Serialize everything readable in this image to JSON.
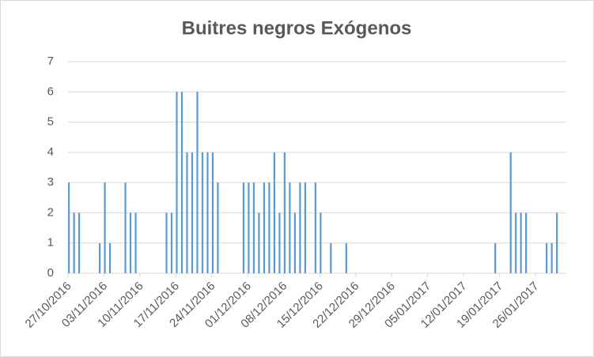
{
  "chart_data": {
    "type": "bar",
    "title": "Buitres negros Exógenos",
    "x": [
      "27/10/2016",
      "28/10/2016",
      "29/10/2016",
      "02/11/2016",
      "03/11/2016",
      "04/11/2016",
      "07/11/2016",
      "08/11/2016",
      "09/11/2016",
      "15/11/2016",
      "16/11/2016",
      "17/11/2016",
      "18/11/2016",
      "19/11/2016",
      "20/11/2016",
      "21/11/2016",
      "22/11/2016",
      "23/11/2016",
      "24/11/2016",
      "25/11/2016",
      "30/11/2016",
      "01/12/2016",
      "02/12/2016",
      "03/12/2016",
      "04/12/2016",
      "05/12/2016",
      "06/12/2016",
      "07/12/2016",
      "08/12/2016",
      "09/12/2016",
      "10/12/2016",
      "11/12/2016",
      "12/12/2016",
      "14/12/2016",
      "15/12/2016",
      "17/12/2016",
      "20/12/2016",
      "18/01/2017",
      "21/01/2017",
      "22/01/2017",
      "23/01/2017",
      "24/01/2017",
      "28/01/2017",
      "29/01/2017",
      "30/01/2017"
    ],
    "values": [
      3,
      2,
      2,
      1,
      3,
      1,
      3,
      2,
      2,
      2,
      2,
      6,
      6,
      4,
      4,
      6,
      4,
      4,
      4,
      3,
      3,
      3,
      3,
      2,
      3,
      3,
      4,
      2,
      4,
      3,
      2,
      3,
      3,
      3,
      2,
      1,
      1,
      1,
      4,
      2,
      2,
      2,
      1,
      1,
      2
    ],
    "color": "#5b9bd5",
    "xlim": [
      "27/10/2016",
      "01/02/2017"
    ],
    "xticks": [
      "27/10/2016",
      "03/11/2016",
      "10/11/2016",
      "17/11/2016",
      "24/11/2016",
      "01/12/2016",
      "08/12/2016",
      "15/12/2016",
      "22/12/2016",
      "29/12/2016",
      "05/01/2017",
      "12/01/2017",
      "19/01/2017",
      "26/01/2017"
    ],
    "ylim": [
      0,
      7
    ],
    "yticks": [
      0,
      1,
      2,
      3,
      4,
      5,
      6,
      7
    ],
    "grid": true
  }
}
